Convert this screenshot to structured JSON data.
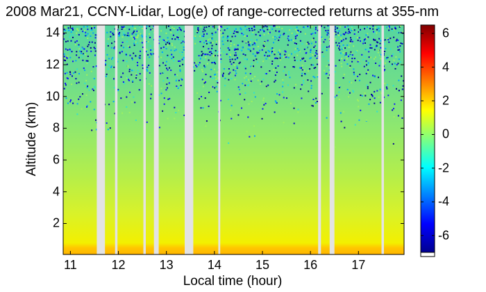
{
  "chart_data": {
    "type": "heatmap",
    "title": "2008 Mar21, CCNY-Lidar, Log(e) of range-corrected returns at 355-nm",
    "xlabel": "Local time (hour)",
    "ylabel": "Altitude (km)",
    "xlim": [
      10.85,
      17.95
    ],
    "ylim": [
      0.05,
      14.5
    ],
    "x_ticks": [
      "11",
      "12",
      "13",
      "14",
      "15",
      "16",
      "17"
    ],
    "y_ticks": [
      "2",
      "4",
      "6",
      "8",
      "10",
      "12",
      "14"
    ],
    "colorbar": {
      "range": [
        -7,
        6.5
      ],
      "ticks": [
        "6",
        "4",
        "2",
        "0",
        "-2",
        "-4",
        "-6"
      ]
    },
    "data_gaps_hours": [
      [
        11.55,
        11.72
      ],
      [
        11.93,
        11.98
      ],
      [
        12.52,
        12.57
      ],
      [
        12.74,
        12.84
      ],
      [
        13.38,
        13.56
      ],
      [
        14.08,
        14.12
      ],
      [
        16.16,
        16.22
      ],
      [
        16.4,
        16.5
      ],
      [
        17.48,
        17.53
      ]
    ]
  },
  "colors": {
    "gap": "#e3e3e3",
    "background": "#ffffff"
  }
}
